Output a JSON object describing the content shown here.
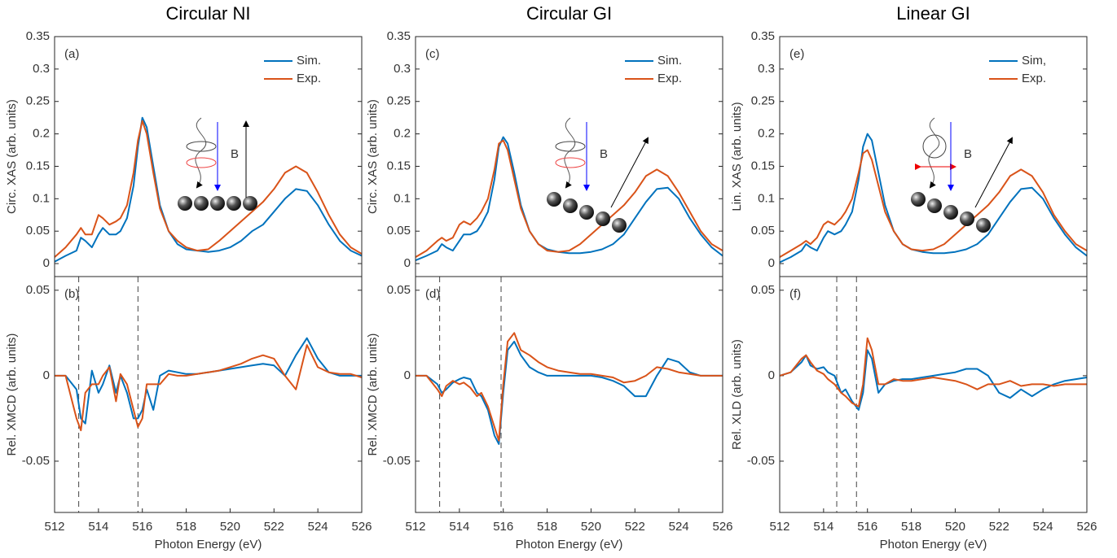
{
  "chart_data": [
    {
      "type": "line",
      "title": "Circular NI",
      "panel_label": "(a)",
      "y_label": "Circ. XAS (arb. units)",
      "inset_label": "B",
      "legend": "upper right",
      "ylim": [
        -0.02,
        0.35
      ],
      "yticks": [
        0,
        0.05,
        0.1,
        0.15,
        0.2,
        0.25,
        0.3,
        0.35
      ],
      "xlim": [
        512,
        526
      ],
      "x": [
        512,
        512.5,
        513,
        513.2,
        513.4,
        513.7,
        514,
        514.2,
        514.5,
        514.8,
        515,
        515.3,
        515.6,
        515.8,
        516,
        516.2,
        516.5,
        516.8,
        517.2,
        517.6,
        518,
        518.5,
        519,
        519.5,
        520,
        520.5,
        521,
        521.5,
        522,
        522.5,
        523,
        523.5,
        524,
        524.5,
        525,
        525.5,
        526
      ],
      "series": [
        {
          "name": "Sim.",
          "color": "#0072bd",
          "values": [
            0.003,
            0.012,
            0.02,
            0.04,
            0.035,
            0.025,
            0.045,
            0.055,
            0.045,
            0.045,
            0.05,
            0.07,
            0.12,
            0.18,
            0.225,
            0.21,
            0.15,
            0.09,
            0.05,
            0.03,
            0.022,
            0.02,
            0.018,
            0.02,
            0.025,
            0.035,
            0.05,
            0.06,
            0.08,
            0.1,
            0.115,
            0.112,
            0.09,
            0.06,
            0.035,
            0.02,
            0.012
          ]
        },
        {
          "name": "Exp.",
          "color": "#d95319",
          "values": [
            0.01,
            0.025,
            0.045,
            0.055,
            0.045,
            0.045,
            0.075,
            0.07,
            0.06,
            0.065,
            0.07,
            0.09,
            0.14,
            0.19,
            0.22,
            0.2,
            0.14,
            0.085,
            0.05,
            0.035,
            0.025,
            0.02,
            0.022,
            0.035,
            0.05,
            0.065,
            0.08,
            0.095,
            0.115,
            0.14,
            0.15,
            0.14,
            0.11,
            0.075,
            0.045,
            0.025,
            0.015
          ]
        }
      ]
    },
    {
      "type": "line",
      "panel_label": "(b)",
      "y_label": "Rel. XMCD (arb. units)",
      "x_label": "Photon Energy (eV)",
      "ylim": [
        -0.08,
        0.058
      ],
      "yticks": [
        -0.05,
        0,
        0.05
      ],
      "xlim": [
        512,
        526
      ],
      "xticks": [
        512,
        514,
        516,
        518,
        520,
        522,
        524,
        526
      ],
      "vlines": [
        513.1,
        515.8
      ],
      "x": [
        512,
        512.5,
        513,
        513.2,
        513.4,
        513.7,
        514,
        514.2,
        514.5,
        514.8,
        515,
        515.3,
        515.6,
        515.8,
        516,
        516.2,
        516.5,
        516.8,
        517.2,
        517.6,
        518,
        518.5,
        519,
        519.5,
        520,
        520.5,
        521,
        521.5,
        522,
        522.5,
        523,
        523.5,
        524,
        524.5,
        525,
        525.5,
        526
      ],
      "series": [
        {
          "name": "Sim.",
          "color": "#0072bd",
          "values": [
            0,
            0,
            -0.008,
            -0.025,
            -0.028,
            0.003,
            -0.01,
            -0.005,
            0.006,
            -0.01,
            0,
            -0.01,
            -0.025,
            -0.025,
            -0.02,
            -0.008,
            -0.02,
            0,
            0.003,
            0.002,
            0.001,
            0.001,
            0.002,
            0.003,
            0.004,
            0.005,
            0.006,
            0.007,
            0.006,
            0,
            0.012,
            0.022,
            0.01,
            0.002,
            0,
            0,
            0
          ]
        },
        {
          "name": "Exp.",
          "color": "#d95319",
          "values": [
            0,
            0,
            -0.025,
            -0.032,
            -0.01,
            -0.005,
            -0.005,
            0,
            0.005,
            -0.015,
            0.001,
            -0.005,
            -0.02,
            -0.03,
            -0.025,
            -0.005,
            -0.005,
            -0.005,
            0.001,
            0,
            0,
            0.001,
            0.002,
            0.003,
            0.005,
            0.007,
            0.01,
            0.012,
            0.01,
            0,
            -0.008,
            0.018,
            0.005,
            0.002,
            0.001,
            0.001,
            -0.001
          ]
        }
      ]
    },
    {
      "type": "line",
      "title": "Circular GI",
      "panel_label": "(c)",
      "y_label": "Circ. XAS (arb. units)",
      "inset_label": "B",
      "legend": "upper right",
      "ylim": [
        -0.02,
        0.35
      ],
      "yticks": [
        0,
        0.05,
        0.1,
        0.15,
        0.2,
        0.25,
        0.3,
        0.35
      ],
      "xlim": [
        512,
        526
      ],
      "x": [
        512,
        512.5,
        513,
        513.2,
        513.4,
        513.7,
        514,
        514.2,
        514.5,
        514.8,
        515,
        515.3,
        515.6,
        515.8,
        516,
        516.2,
        516.5,
        516.8,
        517.2,
        517.6,
        518,
        518.5,
        519,
        519.5,
        520,
        520.5,
        521,
        521.5,
        522,
        522.5,
        523,
        523.5,
        524,
        524.5,
        525,
        525.5,
        526
      ],
      "series": [
        {
          "name": "Sim.",
          "color": "#0072bd",
          "values": [
            0.005,
            0.012,
            0.02,
            0.03,
            0.025,
            0.02,
            0.035,
            0.045,
            0.045,
            0.05,
            0.06,
            0.08,
            0.13,
            0.18,
            0.195,
            0.185,
            0.14,
            0.09,
            0.05,
            0.03,
            0.022,
            0.018,
            0.016,
            0.016,
            0.018,
            0.022,
            0.03,
            0.045,
            0.07,
            0.095,
            0.115,
            0.117,
            0.1,
            0.07,
            0.045,
            0.025,
            0.012
          ]
        },
        {
          "name": "Exp.",
          "color": "#d95319",
          "values": [
            0.01,
            0.02,
            0.035,
            0.04,
            0.035,
            0.04,
            0.06,
            0.065,
            0.06,
            0.07,
            0.08,
            0.1,
            0.145,
            0.185,
            0.19,
            0.175,
            0.13,
            0.085,
            0.05,
            0.03,
            0.02,
            0.018,
            0.02,
            0.03,
            0.045,
            0.06,
            0.075,
            0.09,
            0.11,
            0.135,
            0.145,
            0.135,
            0.11,
            0.08,
            0.05,
            0.03,
            0.02
          ]
        }
      ]
    },
    {
      "type": "line",
      "panel_label": "(d)",
      "y_label": "Rel. XMCD (arb. units)",
      "x_label": "Photon Energy (eV)",
      "ylim": [
        -0.08,
        0.058
      ],
      "yticks": [
        -0.05,
        0,
        0.05
      ],
      "xlim": [
        512,
        526
      ],
      "xticks": [
        512,
        514,
        516,
        518,
        520,
        522,
        524,
        526
      ],
      "vlines": [
        513.1,
        515.9
      ],
      "x": [
        512,
        512.5,
        513,
        513.2,
        513.4,
        513.7,
        514,
        514.2,
        514.5,
        514.8,
        515,
        515.3,
        515.6,
        515.8,
        516,
        516.2,
        516.5,
        516.8,
        517.2,
        517.6,
        518,
        518.5,
        519,
        519.5,
        520,
        520.5,
        521,
        521.5,
        522,
        522.5,
        523,
        523.5,
        524,
        524.5,
        525,
        525.5,
        526
      ],
      "series": [
        {
          "name": "Sim.",
          "color": "#0072bd",
          "values": [
            0,
            0,
            -0.005,
            -0.01,
            -0.008,
            -0.004,
            -0.002,
            -0.001,
            -0.002,
            -0.01,
            -0.012,
            -0.02,
            -0.035,
            -0.04,
            -0.01,
            0.015,
            0.02,
            0.012,
            0.005,
            0.002,
            0,
            0,
            0,
            0,
            0,
            -0.001,
            -0.003,
            -0.006,
            -0.012,
            -0.012,
            0,
            0.01,
            0.008,
            0.002,
            0,
            0,
            0
          ]
        },
        {
          "name": "Exp.",
          "color": "#d95319",
          "values": [
            0,
            0,
            -0.008,
            -0.012,
            -0.006,
            -0.003,
            -0.005,
            -0.004,
            -0.007,
            -0.012,
            -0.01,
            -0.018,
            -0.03,
            -0.038,
            -0.005,
            0.02,
            0.025,
            0.015,
            0.012,
            0.008,
            0.005,
            0.003,
            0.002,
            0.001,
            0.001,
            0,
            -0.001,
            -0.004,
            -0.003,
            0,
            0.005,
            0.004,
            0.002,
            0.001,
            0,
            0,
            0
          ]
        }
      ]
    },
    {
      "type": "line",
      "title": "Linear GI",
      "panel_label": "(e)",
      "y_label": "Lin. XAS (arb. units)",
      "inset_label": "B",
      "legend": "upper right",
      "ylim": [
        -0.02,
        0.35
      ],
      "yticks": [
        0,
        0.05,
        0.1,
        0.15,
        0.2,
        0.25,
        0.3,
        0.35
      ],
      "xlim": [
        512,
        526
      ],
      "x": [
        512,
        512.5,
        513,
        513.2,
        513.4,
        513.7,
        514,
        514.2,
        514.5,
        514.8,
        515,
        515.3,
        515.6,
        515.8,
        516,
        516.2,
        516.5,
        516.8,
        517.2,
        517.6,
        518,
        518.5,
        519,
        519.5,
        520,
        520.5,
        521,
        521.5,
        522,
        522.5,
        523,
        523.5,
        524,
        524.5,
        525,
        525.5,
        526
      ],
      "series": [
        {
          "name": "Sim,",
          "color": "#0072bd",
          "values": [
            0.002,
            0.01,
            0.02,
            0.03,
            0.025,
            0.02,
            0.04,
            0.05,
            0.045,
            0.05,
            0.06,
            0.08,
            0.13,
            0.18,
            0.2,
            0.19,
            0.14,
            0.09,
            0.05,
            0.03,
            0.022,
            0.018,
            0.016,
            0.016,
            0.018,
            0.022,
            0.03,
            0.045,
            0.07,
            0.095,
            0.115,
            0.117,
            0.1,
            0.07,
            0.045,
            0.025,
            0.012
          ]
        },
        {
          "name": "Exp.",
          "color": "#d95319",
          "values": [
            0.01,
            0.02,
            0.03,
            0.035,
            0.03,
            0.04,
            0.06,
            0.065,
            0.06,
            0.07,
            0.08,
            0.1,
            0.14,
            0.17,
            0.175,
            0.16,
            0.12,
            0.08,
            0.05,
            0.03,
            0.022,
            0.02,
            0.022,
            0.03,
            0.045,
            0.06,
            0.075,
            0.09,
            0.11,
            0.135,
            0.145,
            0.135,
            0.11,
            0.075,
            0.05,
            0.03,
            0.02
          ]
        }
      ]
    },
    {
      "type": "line",
      "panel_label": "(f)",
      "y_label": "Rel. XLD (arb. units)",
      "x_label": "Photon Energy (eV)",
      "ylim": [
        -0.08,
        0.058
      ],
      "yticks": [
        -0.05,
        0,
        0.05
      ],
      "xlim": [
        512,
        526
      ],
      "xticks": [
        512,
        514,
        516,
        518,
        520,
        522,
        524,
        526
      ],
      "vlines": [
        514.6,
        515.5
      ],
      "x": [
        512,
        512.5,
        513,
        513.2,
        513.4,
        513.7,
        514,
        514.2,
        514.5,
        514.8,
        515,
        515.3,
        515.6,
        515.8,
        516,
        516.2,
        516.5,
        516.8,
        517.2,
        517.6,
        518,
        518.5,
        519,
        519.5,
        520,
        520.5,
        521,
        521.5,
        522,
        522.5,
        523,
        523.5,
        524,
        524.5,
        525,
        525.5,
        526
      ],
      "series": [
        {
          "name": "Sim,",
          "color": "#0072bd",
          "values": [
            0,
            0.002,
            0.008,
            0.012,
            0.006,
            0.004,
            0.005,
            0.002,
            0,
            -0.01,
            -0.008,
            -0.015,
            -0.02,
            -0.01,
            0.015,
            0.01,
            -0.01,
            -0.005,
            -0.003,
            -0.002,
            -0.002,
            -0.001,
            0,
            0.001,
            0.002,
            0.004,
            0.004,
            0,
            -0.01,
            -0.013,
            -0.008,
            -0.012,
            -0.008,
            -0.005,
            -0.003,
            -0.002,
            -0.001
          ]
        },
        {
          "name": "Exp.",
          "color": "#d95319",
          "values": [
            0,
            0.002,
            0.01,
            0.012,
            0.008,
            0.003,
            0.001,
            -0.002,
            -0.005,
            -0.01,
            -0.012,
            -0.016,
            -0.018,
            -0.005,
            0.022,
            0.015,
            -0.005,
            -0.005,
            -0.002,
            -0.003,
            -0.003,
            -0.002,
            -0.001,
            -0.002,
            -0.003,
            -0.005,
            -0.008,
            -0.005,
            -0.005,
            -0.003,
            -0.006,
            -0.005,
            -0.005,
            -0.006,
            -0.005,
            -0.005,
            -0.005
          ]
        }
      ]
    }
  ]
}
